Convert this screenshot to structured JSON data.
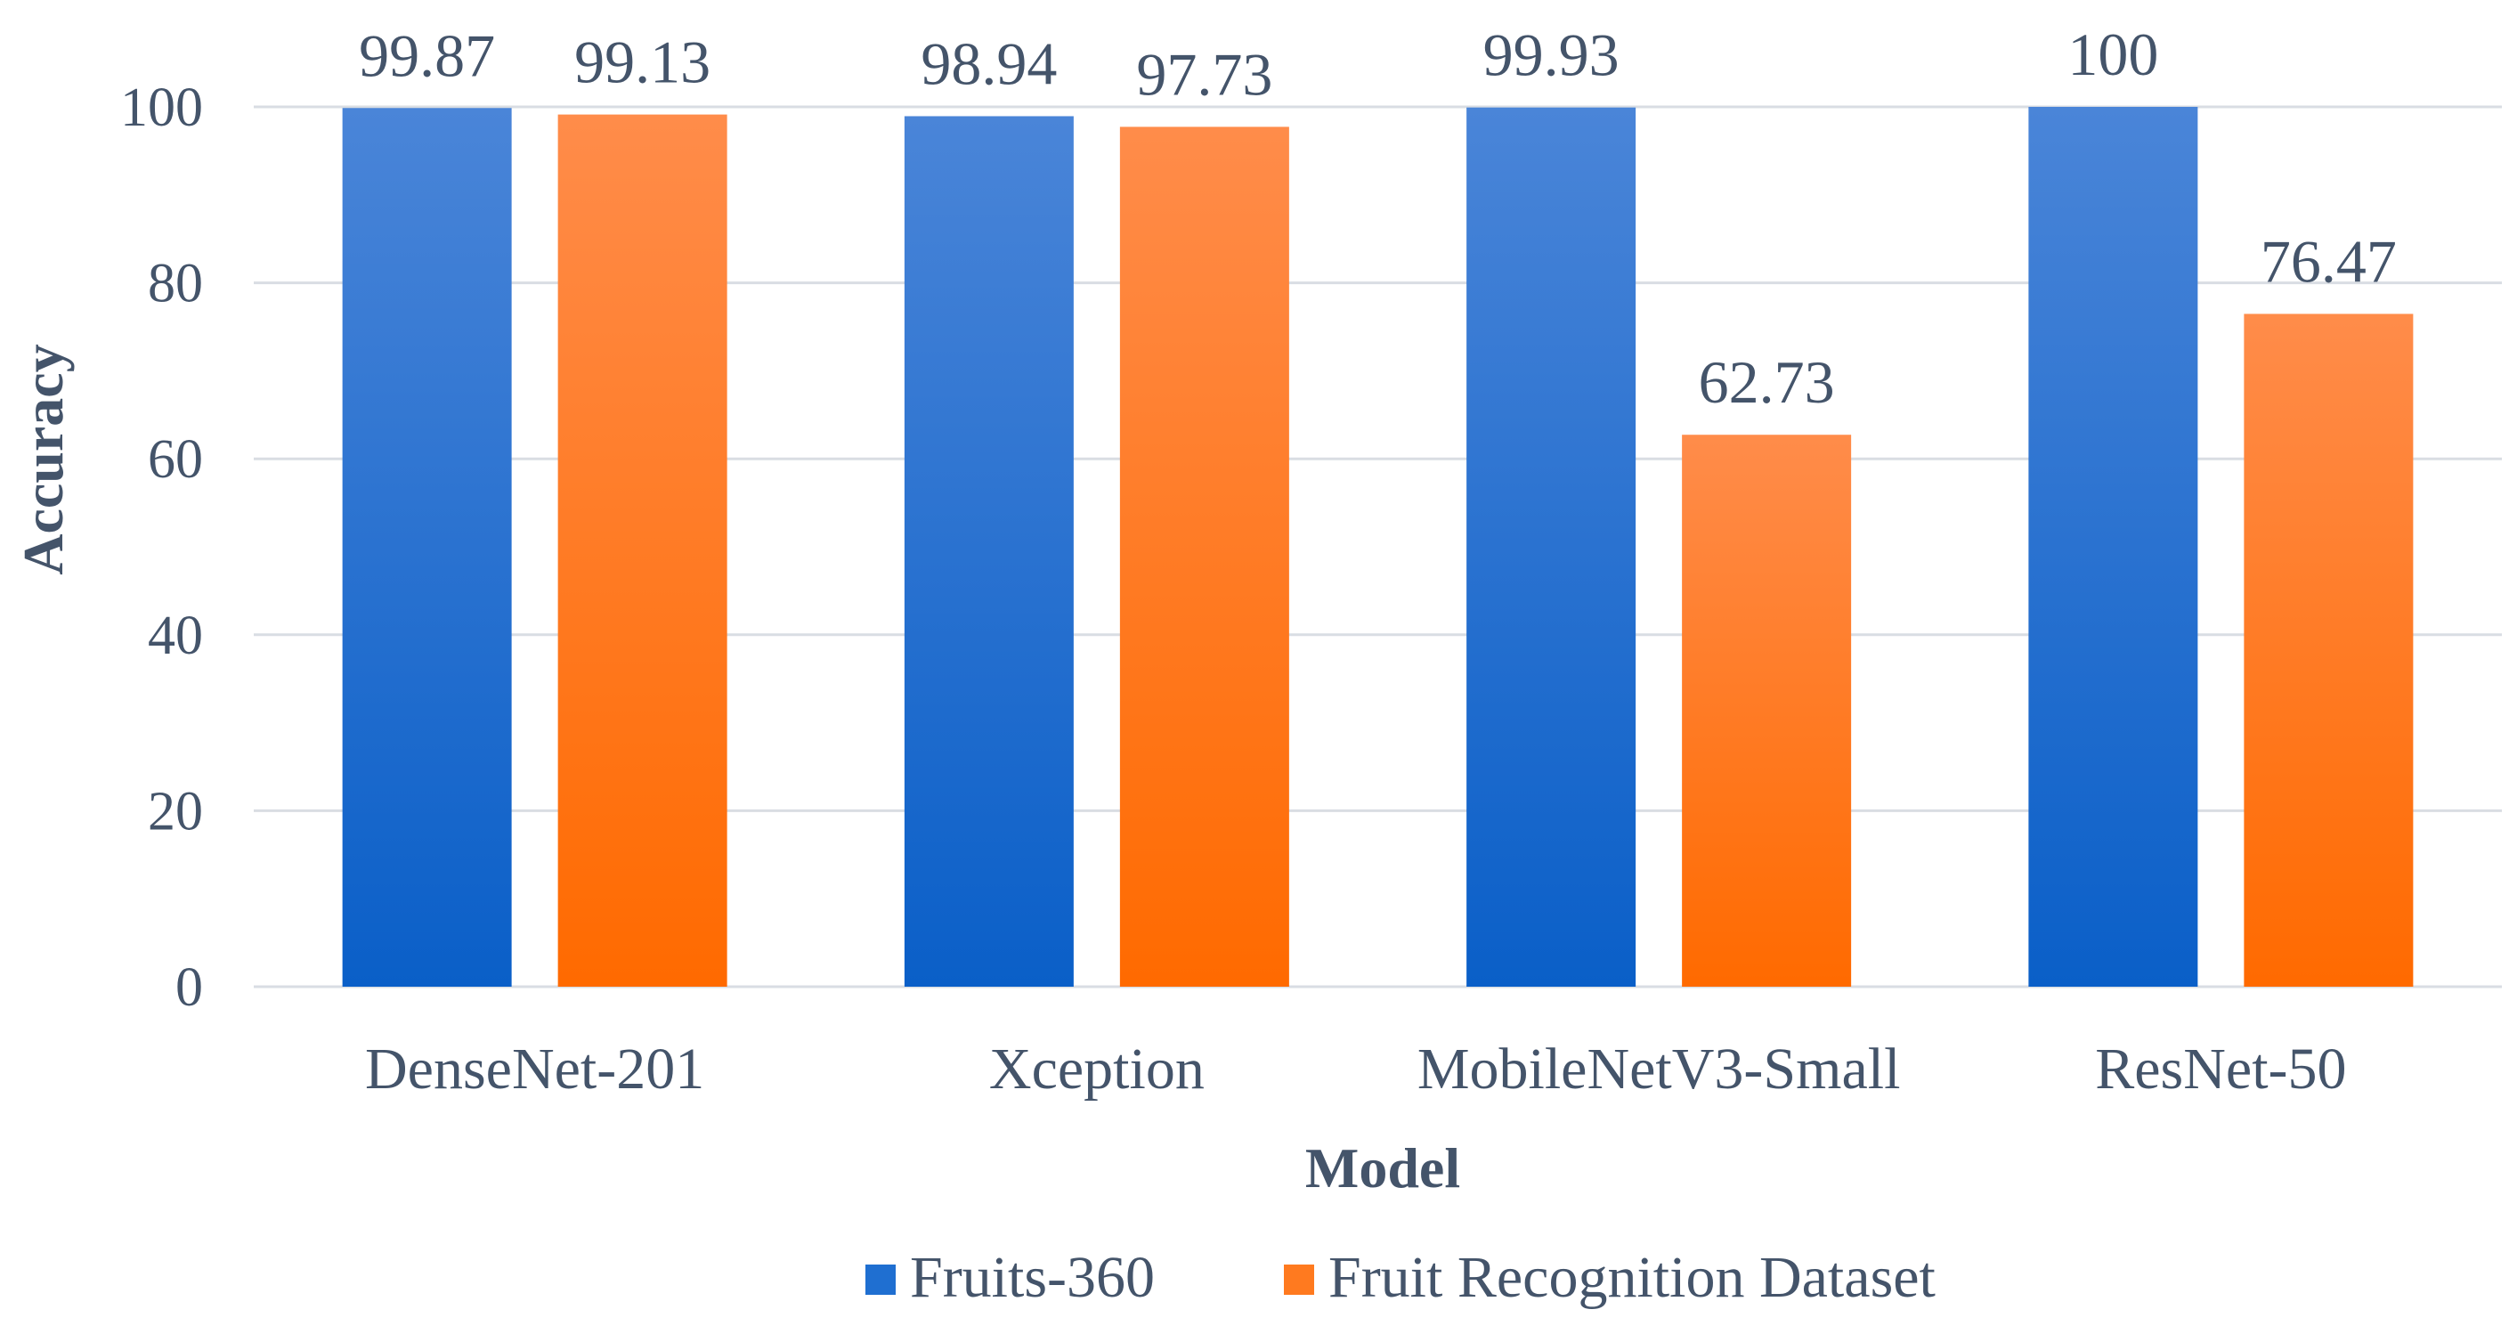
{
  "chart_data": {
    "type": "bar",
    "title": "",
    "xlabel": "Model",
    "ylabel": "Accuracy",
    "categories": [
      "DenseNet-201",
      "Xception",
      "MobileNetV3-Small",
      "ResNet-50"
    ],
    "series": [
      {
        "name": "Fruits-360",
        "values": [
          99.87,
          98.94,
          99.93,
          100
        ],
        "labels": [
          "99.87",
          "98.94",
          "99.93",
          "100"
        ],
        "color": "#1f6fd1"
      },
      {
        "name": "Fruit Recognition Dataset",
        "values": [
          99.13,
          97.73,
          62.73,
          76.47
        ],
        "labels": [
          "99.13",
          "97.73",
          "62.73",
          "76.47"
        ],
        "color": "#ff7a1f"
      }
    ],
    "ylim": [
      0,
      100
    ],
    "yticks": [
      "0",
      "20",
      "40",
      "60",
      "80",
      "100"
    ],
    "grid": true,
    "legend": "bottom"
  },
  "colors": {
    "blue_top": "#4a85d8",
    "blue_bottom": "#0a5fc8",
    "orange_top": "#ff8c4a",
    "orange_bottom": "#ff6a00",
    "grid": "#d9dde3",
    "text": "#44546a"
  }
}
